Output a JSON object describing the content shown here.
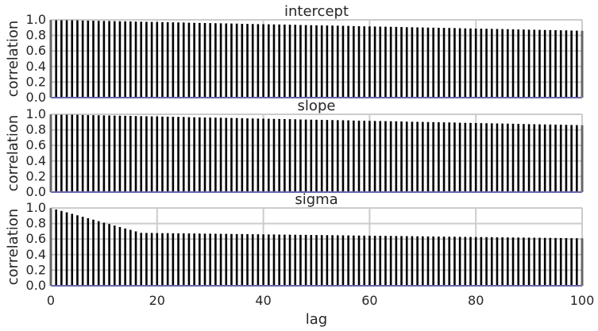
{
  "chart_data": [
    {
      "type": "bar",
      "title": "intercept",
      "ylabel": "correlation",
      "xlabel": "",
      "ylim": [
        0,
        1.0
      ],
      "yticks": [
        "0.0",
        "0.2",
        "0.4",
        "0.6",
        "0.8",
        "1.0"
      ],
      "xlim": [
        0,
        100
      ],
      "grid": true,
      "bar_color": "#000000",
      "baseline_color": "#00008b",
      "acf": {
        "lag_start": 0,
        "lag_end": 100,
        "start": 1.0,
        "end": 0.86,
        "knee_lag": 0,
        "knee_value": 1.0
      }
    },
    {
      "type": "bar",
      "title": "slope",
      "ylabel": "correlation",
      "xlabel": "",
      "ylim": [
        0,
        1.0
      ],
      "yticks": [
        "0.0",
        "0.2",
        "0.4",
        "0.6",
        "0.8",
        "1.0"
      ],
      "xlim": [
        0,
        100
      ],
      "grid": true,
      "bar_color": "#000000",
      "baseline_color": "#00008b",
      "acf": {
        "lag_start": 0,
        "lag_end": 100,
        "start": 1.0,
        "end": 0.86,
        "knee_lag": 0,
        "knee_value": 1.0
      }
    },
    {
      "type": "bar",
      "title": "sigma",
      "ylabel": "correlation",
      "xlabel": "lag",
      "ylim": [
        0,
        1.0
      ],
      "yticks": [
        "0.0",
        "0.2",
        "0.4",
        "0.6",
        "0.8",
        "1.0"
      ],
      "xticks": [
        "0",
        "20",
        "40",
        "60",
        "80",
        "100"
      ],
      "xlim": [
        0,
        100
      ],
      "grid": true,
      "bar_color": "#000000",
      "baseline_color": "#00008b",
      "acf": {
        "lag_start": 0,
        "lag_end": 100,
        "start": 1.0,
        "end": 0.61,
        "knee_lag": 17,
        "knee_value": 0.68
      }
    }
  ]
}
